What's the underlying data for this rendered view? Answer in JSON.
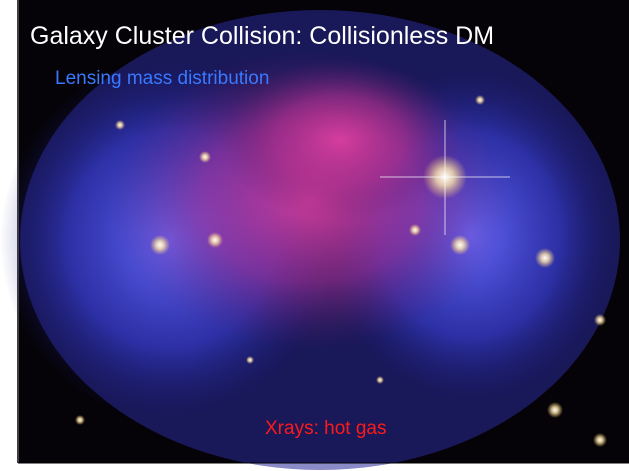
{
  "slide": {
    "title": "Galaxy Cluster Collision: Collisionless DM",
    "labels": {
      "lensing": "Lensing mass distribution",
      "xrays": "Xrays: hot gas"
    }
  }
}
